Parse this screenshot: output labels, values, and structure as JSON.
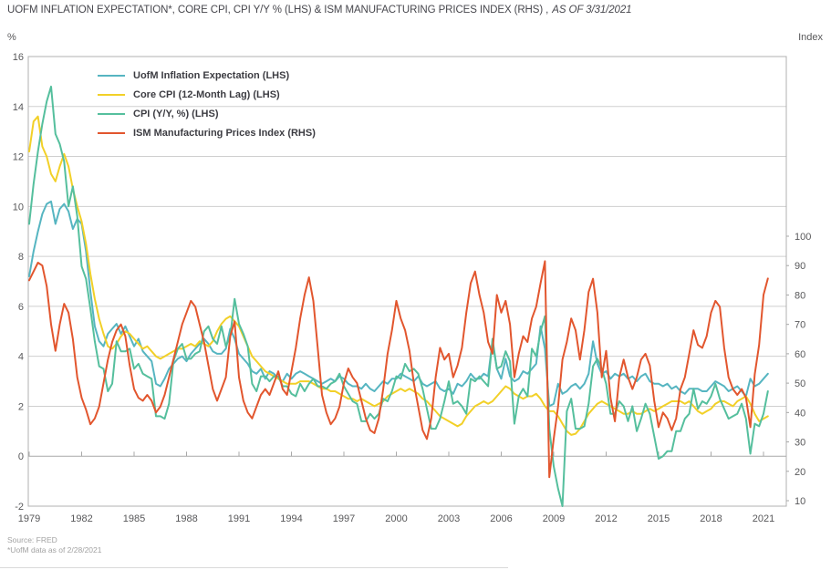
{
  "title": {
    "main": "UOFM INFLATION EXPECTATION*, CORE CPI, CPI Y/Y % (LHS) & ISM MANUFACTURING PRICES INDEX (RHS) ,",
    "as_of": "AS OF 3/31/2021"
  },
  "footer": {
    "source": "Source: FRED",
    "note": "*UofM data as of 2/28/2021"
  },
  "colors": {
    "uofm": "#56b5c1",
    "core_cpi": "#f2d028",
    "cpi": "#55bf9d",
    "ism": "#e2562e",
    "gridline": "#cfcfcf",
    "axis_line": "#a8a8a8",
    "border": "#b0b0b0",
    "tick_text": "#58585a"
  },
  "chart_data": {
    "type": "line",
    "title": "UOFM INFLATION EXPECTATION*, CORE CPI, CPI Y/Y % (LHS) & ISM MANUFACTURING PRICES INDEX (RHS), AS OF 3/31/2021",
    "left_axis": {
      "unit": "%",
      "min": -2,
      "max": 16,
      "ticks": [
        16,
        14,
        12,
        10,
        8,
        6,
        4,
        2,
        0,
        -2
      ]
    },
    "right_axis": {
      "unit": "Index",
      "min": 10,
      "max": 100,
      "ticks": [
        100,
        90,
        80,
        70,
        60,
        50,
        40,
        30,
        20,
        10
      ]
    },
    "x_axis": {
      "ticks": [
        1979,
        1982,
        1985,
        1988,
        1991,
        1994,
        1997,
        2000,
        2003,
        2006,
        2009,
        2012,
        2015,
        2018,
        2021
      ],
      "crosses_at": 0
    },
    "grid": true,
    "legend_position": "top-left",
    "x_start": 1979.0,
    "x_step": 0.25,
    "series": [
      {
        "name": "UofM Inflation Expectation (LHS)",
        "key": "uofm",
        "axis": "left",
        "values": [
          7.2,
          8.2,
          9.0,
          9.7,
          10.1,
          10.2,
          9.3,
          9.9,
          10.1,
          9.8,
          9.1,
          9.5,
          9.3,
          8.2,
          6.6,
          5.2,
          4.6,
          4.4,
          4.9,
          5.1,
          5.3,
          4.9,
          5.2,
          4.8,
          4.4,
          4.7,
          4.2,
          4.0,
          3.8,
          2.9,
          2.8,
          3.1,
          3.5,
          3.7,
          3.9,
          4.0,
          3.8,
          4.1,
          4.3,
          4.5,
          4.7,
          4.5,
          4.2,
          4.1,
          4.1,
          4.3,
          5.1,
          4.7,
          4.1,
          3.9,
          3.7,
          3.4,
          3.3,
          3.5,
          3.1,
          3.4,
          3.3,
          3.1,
          3.0,
          3.3,
          3.1,
          3.3,
          3.4,
          3.3,
          3.2,
          3.1,
          3.0,
          2.9,
          3.0,
          3.1,
          3.0,
          3.2,
          3.1,
          2.9,
          2.8,
          2.8,
          2.7,
          2.9,
          2.7,
          2.6,
          2.8,
          3.0,
          2.9,
          3.1,
          3.1,
          3.3,
          3.2,
          3.1,
          3.0,
          3.2,
          2.9,
          2.8,
          2.9,
          3.0,
          2.7,
          2.6,
          2.7,
          2.5,
          2.9,
          2.8,
          3.0,
          3.3,
          3.1,
          3.1,
          3.3,
          3.2,
          4.6,
          3.5,
          3.1,
          3.9,
          3.2,
          3.0,
          3.1,
          3.4,
          3.3,
          3.5,
          3.7,
          5.2,
          4.3,
          2.0,
          2.1,
          2.9,
          2.5,
          2.6,
          2.8,
          2.9,
          2.7,
          2.9,
          3.3,
          4.6,
          3.7,
          3.3,
          3.4,
          3.1,
          3.3,
          3.2,
          3.3,
          3.1,
          3.2,
          3.0,
          3.2,
          3.3,
          3.0,
          2.9,
          2.9,
          2.8,
          2.9,
          2.7,
          2.8,
          2.6,
          2.5,
          2.7,
          2.7,
          2.7,
          2.6,
          2.6,
          2.8,
          3.0,
          2.9,
          2.8,
          2.6,
          2.7,
          2.8,
          2.6,
          2.4,
          3.1,
          2.8,
          2.9,
          3.1,
          3.3
        ]
      },
      {
        "name": "Core CPI (12-Month Lag) (LHS)",
        "key": "core_cpi",
        "axis": "left",
        "values": [
          12.2,
          13.4,
          13.6,
          12.4,
          12.0,
          11.3,
          11.0,
          11.6,
          12.1,
          11.6,
          10.7,
          10.0,
          9.4,
          8.5,
          7.3,
          6.3,
          5.5,
          4.9,
          4.4,
          4.3,
          4.5,
          4.8,
          5.0,
          4.9,
          4.7,
          4.5,
          4.3,
          4.4,
          4.2,
          4.0,
          3.9,
          4.0,
          4.1,
          4.2,
          4.3,
          4.3,
          4.4,
          4.5,
          4.4,
          4.6,
          4.5,
          4.4,
          4.6,
          5.0,
          5.3,
          5.5,
          5.6,
          5.4,
          5.2,
          4.8,
          4.4,
          4.0,
          3.8,
          3.6,
          3.4,
          3.3,
          3.2,
          3.1,
          3.0,
          2.9,
          2.9,
          2.9,
          3.0,
          3.0,
          3.0,
          2.9,
          2.8,
          2.7,
          2.7,
          2.6,
          2.6,
          2.5,
          2.4,
          2.3,
          2.3,
          2.2,
          2.3,
          2.2,
          2.1,
          2.0,
          2.1,
          2.2,
          2.4,
          2.5,
          2.6,
          2.7,
          2.6,
          2.7,
          2.6,
          2.5,
          2.3,
          2.2,
          2.0,
          1.8,
          1.6,
          1.5,
          1.4,
          1.3,
          1.2,
          1.3,
          1.6,
          1.8,
          2.0,
          2.1,
          2.2,
          2.1,
          2.2,
          2.4,
          2.6,
          2.8,
          2.7,
          2.5,
          2.4,
          2.3,
          2.4,
          2.4,
          2.5,
          2.3,
          2.0,
          1.8,
          1.8,
          1.6,
          1.3,
          1.0,
          0.85,
          0.9,
          1.1,
          1.4,
          1.7,
          1.9,
          2.1,
          2.2,
          2.1,
          2.0,
          1.9,
          1.8,
          1.7,
          1.7,
          1.8,
          1.7,
          1.7,
          1.8,
          1.9,
          1.8,
          1.9,
          2.0,
          2.1,
          2.2,
          2.2,
          2.2,
          2.1,
          2.2,
          2.0,
          1.8,
          1.7,
          1.8,
          1.9,
          2.1,
          2.2,
          2.2,
          2.1,
          2.0,
          2.2,
          2.3,
          2.4,
          2.1,
          1.7,
          1.4,
          1.5,
          1.6
        ]
      },
      {
        "name": "CPI (Y/Y, %) (LHS)",
        "key": "cpi",
        "axis": "left",
        "values": [
          9.3,
          10.9,
          12.2,
          13.3,
          14.2,
          14.8,
          12.9,
          12.5,
          11.8,
          10.0,
          10.8,
          9.6,
          7.6,
          7.1,
          5.9,
          4.6,
          3.6,
          3.5,
          2.6,
          2.9,
          4.6,
          4.2,
          4.2,
          4.3,
          3.5,
          3.7,
          3.3,
          3.2,
          3.1,
          1.6,
          1.6,
          1.5,
          2.1,
          3.8,
          4.3,
          4.5,
          3.9,
          3.9,
          4.1,
          4.2,
          5.0,
          5.2,
          4.7,
          4.5,
          5.2,
          4.4,
          4.8,
          6.3,
          5.3,
          4.9,
          4.4,
          2.9,
          2.6,
          3.2,
          3.2,
          3.0,
          3.2,
          3.2,
          2.8,
          2.8,
          2.5,
          2.4,
          2.9,
          2.6,
          2.9,
          3.1,
          2.8,
          2.8,
          2.7,
          2.9,
          3.0,
          3.3,
          2.8,
          2.5,
          2.2,
          2.1,
          1.4,
          1.4,
          1.7,
          1.5,
          1.7,
          2.3,
          2.2,
          2.6,
          3.2,
          3.1,
          3.7,
          3.4,
          3.5,
          3.3,
          2.7,
          1.9,
          1.1,
          1.1,
          1.5,
          2.2,
          3.0,
          2.1,
          2.2,
          2.0,
          1.7,
          3.1,
          3.0,
          3.2,
          3.0,
          2.8,
          4.7,
          3.5,
          3.6,
          4.2,
          3.8,
          1.3,
          2.4,
          2.7,
          2.4,
          4.3,
          4.0,
          5.0,
          5.6,
          1.1,
          -0.4,
          -1.3,
          -2.0,
          1.8,
          2.3,
          1.1,
          1.1,
          1.2,
          2.1,
          3.6,
          3.9,
          3.5,
          2.9,
          1.7,
          1.7,
          2.2,
          2.0,
          1.4,
          2.0,
          1.0,
          1.5,
          2.1,
          1.7,
          0.8,
          -0.1,
          0.0,
          0.2,
          0.2,
          1.0,
          1.0,
          1.5,
          1.7,
          2.7,
          1.9,
          2.2,
          2.1,
          2.4,
          2.9,
          2.3,
          1.9,
          1.5,
          1.6,
          1.7,
          2.1,
          1.5,
          0.1,
          1.3,
          1.2,
          1.7,
          2.6
        ]
      },
      {
        "name": "ISM Manufacturing Prices Index (RHS)",
        "key": "ism",
        "axis": "right",
        "values": [
          85,
          88,
          91,
          90,
          83,
          70,
          61,
          70,
          77,
          74,
          65,
          52,
          45,
          41,
          36,
          38,
          42,
          50,
          58,
          64,
          68,
          70,
          66,
          56,
          48,
          45,
          44,
          46,
          44,
          40,
          42,
          46,
          52,
          58,
          64,
          70,
          74,
          78,
          76,
          70,
          64,
          56,
          48,
          44,
          48,
          52,
          66,
          71,
          52,
          44,
          40,
          38,
          42,
          46,
          48,
          46,
          50,
          54,
          48,
          46,
          54,
          62,
          72,
          80,
          86,
          78,
          62,
          46,
          40,
          36,
          38,
          42,
          50,
          55,
          52,
          50,
          44,
          38,
          34,
          33,
          38,
          48,
          60,
          68,
          78,
          72,
          68,
          61,
          50,
          42,
          34,
          31,
          38,
          52,
          62,
          58,
          60,
          52,
          56,
          62,
          74,
          84,
          88,
          80,
          74,
          64,
          60,
          80,
          74,
          78,
          70,
          52,
          60,
          66,
          64,
          72,
          76,
          84,
          91.5,
          18,
          31,
          42,
          58,
          64,
          72,
          68,
          58,
          68,
          81,
          85.5,
          74,
          52,
          61,
          45,
          37,
          52,
          58,
          52,
          48,
          52,
          58,
          60,
          56,
          44,
          35,
          40,
          38,
          34,
          38,
          48,
          52,
          60,
          68,
          63,
          62,
          66,
          74,
          78,
          76,
          62,
          52,
          48,
          46,
          48,
          45,
          35,
          53,
          63,
          80,
          85.6
        ]
      }
    ]
  }
}
